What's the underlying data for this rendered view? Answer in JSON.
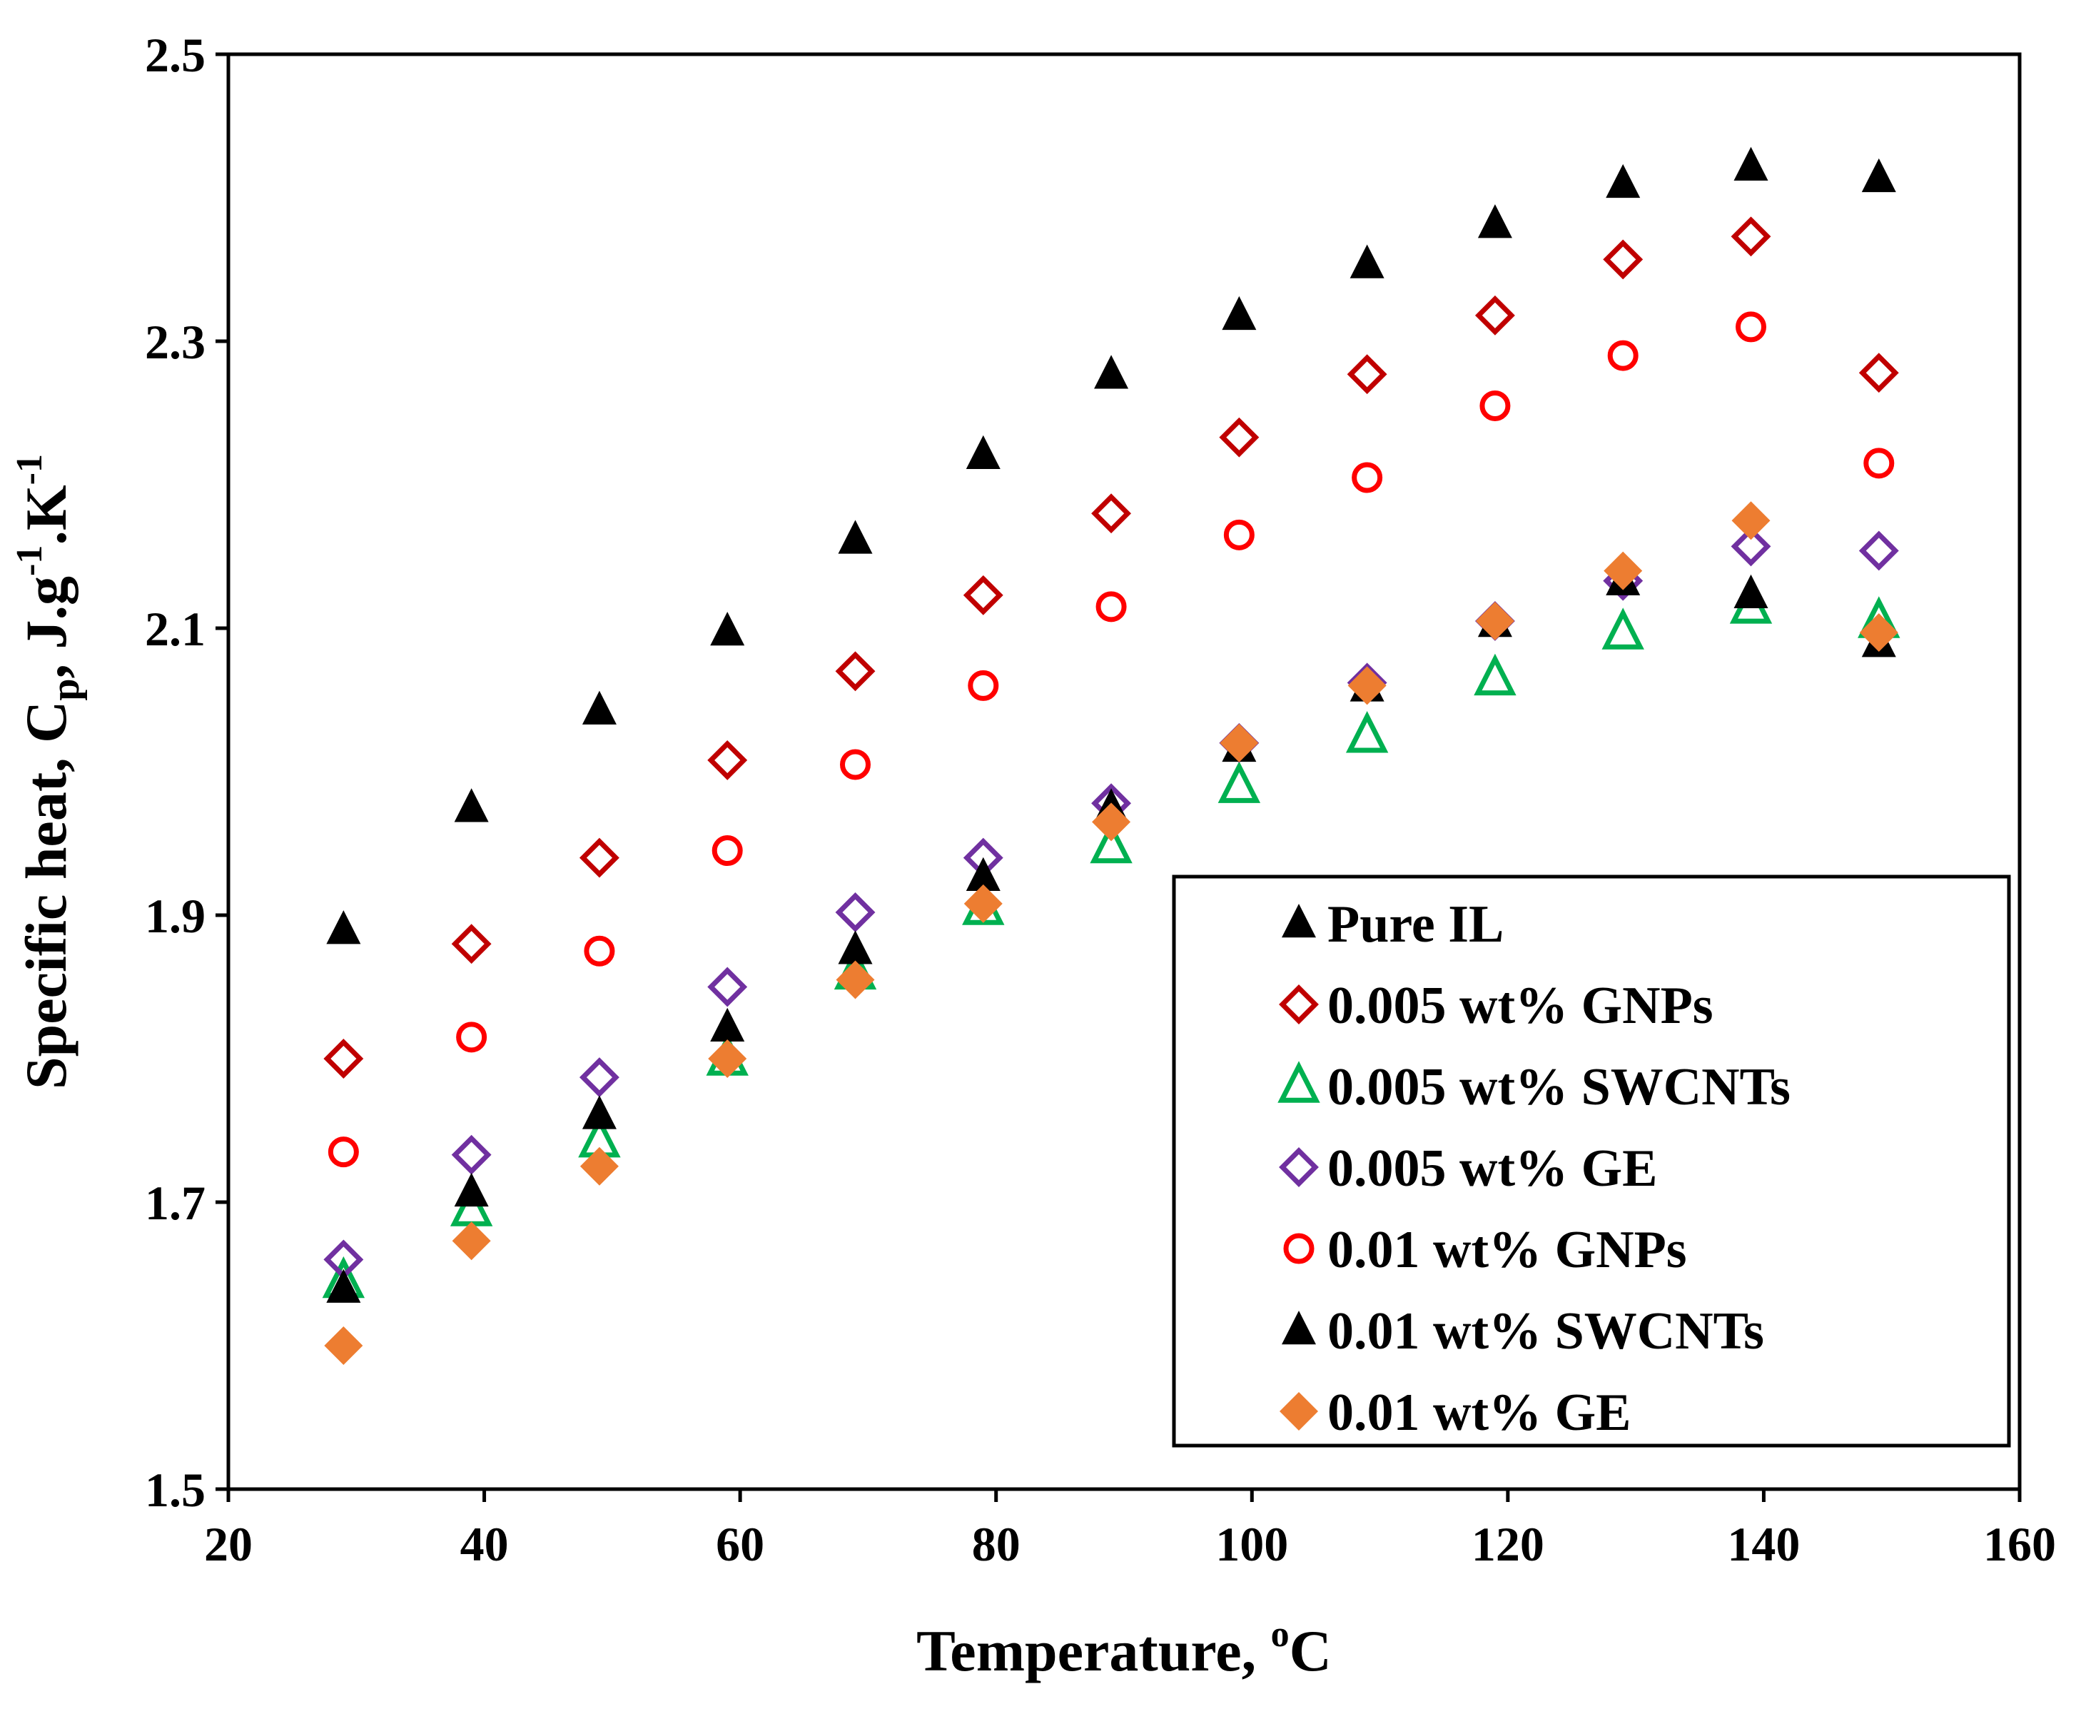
{
  "chart_data": {
    "type": "scatter",
    "title": "",
    "xlabel": "Temperature, ",
    "xlabel_sup": "o",
    "xlabel_unit": "C",
    "ylabel_parts": {
      "prefix": "Specific heat, C",
      "sub": "p",
      "mid": ", J.g",
      "sup1": "-1",
      "mid2": ".K",
      "sup2": "-1"
    },
    "xlim": [
      20,
      160
    ],
    "ylim": [
      1.5,
      2.5
    ],
    "xticks": [
      "20",
      "40",
      "60",
      "80",
      "100",
      "120",
      "140",
      "160"
    ],
    "yticks": [
      "1.5",
      "1.7",
      "1.9",
      "2.1",
      "2.3",
      "2.5"
    ],
    "grid": false,
    "legend_position": "bottom-right",
    "x": [
      29,
      39,
      49,
      59,
      69,
      79,
      89,
      99,
      109,
      119,
      129,
      139,
      149
    ],
    "series": [
      {
        "name": "Pure IL",
        "marker": "triangle",
        "filled": true,
        "color": "#000000",
        "values": [
          1.89,
          1.975,
          2.043,
          2.098,
          2.162,
          2.221,
          2.277,
          2.318,
          2.354,
          2.382,
          2.41,
          2.422,
          2.414
        ]
      },
      {
        "name": "0.005 wt% GNPs",
        "marker": "diamond",
        "filled": false,
        "color": "#c00000",
        "values": [
          1.8,
          1.88,
          1.94,
          2.008,
          2.07,
          2.123,
          2.18,
          2.233,
          2.277,
          2.318,
          2.357,
          2.373,
          2.278
        ]
      },
      {
        "name": "0.005 wt% SWCNTs",
        "marker": "triangle",
        "filled": false,
        "color": "#00b050",
        "values": [
          1.645,
          1.695,
          1.743,
          1.8,
          1.86,
          1.905,
          1.948,
          1.99,
          2.025,
          2.065,
          2.097,
          2.115,
          2.105
        ]
      },
      {
        "name": "0.005 wt% GE",
        "marker": "diamond",
        "filled": false,
        "color": "#7030a0",
        "values": [
          1.66,
          1.733,
          1.787,
          1.85,
          1.902,
          1.94,
          1.978,
          2.02,
          2.062,
          2.105,
          2.133,
          2.157,
          2.154
        ]
      },
      {
        "name": "0.01 wt% GNPs",
        "marker": "circle",
        "filled": false,
        "color": "#ff0000",
        "values": [
          1.735,
          1.815,
          1.875,
          1.945,
          2.005,
          2.06,
          2.115,
          2.165,
          2.205,
          2.255,
          2.29,
          2.31,
          2.215
        ]
      },
      {
        "name": "0.01 wt% SWCNTs",
        "marker": "triangle",
        "filled": true,
        "color": "#000000",
        "values": [
          1.64,
          1.707,
          1.761,
          1.822,
          1.876,
          1.927,
          1.975,
          2.017,
          2.059,
          2.104,
          2.133,
          2.124,
          2.09
        ]
      },
      {
        "name": "0.01 wt% GE",
        "marker": "diamond",
        "filled": true,
        "color": "#ed7d31",
        "values": [
          1.6,
          1.673,
          1.725,
          1.8,
          1.855,
          1.908,
          1.965,
          2.02,
          2.06,
          2.105,
          2.14,
          2.175,
          2.097
        ]
      }
    ]
  }
}
